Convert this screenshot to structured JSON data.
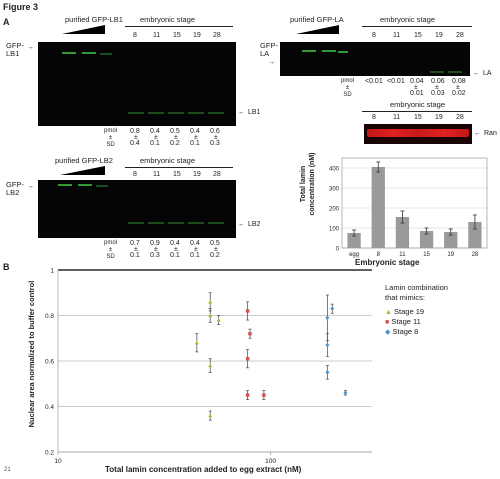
{
  "figure_title": "Figure 3",
  "panel_a": {
    "label": "A",
    "lb1": {
      "side_label": "GFP-\nLB1",
      "purified_label": "purified GFP-LB1",
      "stage_header": "embryonic stage",
      "stages": [
        "8",
        "11",
        "15",
        "19",
        "28"
      ],
      "band_label": "LB1",
      "pmol_label": "pmol\n±\nSD",
      "pmol_values": [
        "0.8",
        "0.4",
        "0.5",
        "0.4",
        "0.6"
      ],
      "sd_values": [
        "0.4",
        "0.1",
        "0.2",
        "0.1",
        "0.3"
      ]
    },
    "lb2": {
      "side_label": "GFP-\nLB2",
      "purified_label": "purified GFP-LB2",
      "stage_header": "embryonic stage",
      "stages": [
        "8",
        "11",
        "15",
        "19",
        "28"
      ],
      "band_label": "LB2",
      "pmol_label": "pmol\n±\nSD",
      "pmol_values": [
        "0.7",
        "0.9",
        "0.4",
        "0.4",
        "0.5"
      ],
      "sd_values": [
        "0.1",
        "0.3",
        "0.1",
        "0.1",
        "0.2"
      ]
    },
    "la": {
      "side_label": "GFP-\nLA",
      "purified_label": "purified GFP-LA",
      "stage_header": "embryonic stage",
      "stages": [
        "8",
        "11",
        "15",
        "19",
        "28"
      ],
      "band_label": "LA",
      "pmol_label": "pmol\n±\nSD",
      "pmol_values": [
        "<0.01",
        "<0.01",
        "0.04",
        "0.06",
        "0.08"
      ],
      "sd_values": [
        "",
        "",
        "0.01",
        "0.03",
        "0.02"
      ]
    },
    "ran": {
      "stage_header": "embryonic stage",
      "stages": [
        "8",
        "11",
        "15",
        "19",
        "28"
      ],
      "band_label": "Ran"
    },
    "bar_chart": {
      "ylabel": "Total lamin\nconcentration (nM)",
      "xlabel": "Embryonic stage",
      "yticks": [
        "0",
        "100",
        "200",
        "300",
        "400"
      ]
    }
  },
  "panel_b": {
    "label": "B",
    "ylabel": "Nuclear area normalized to buffer control",
    "xlabel": "Total lamin concentration added to egg extract (nM)",
    "yticks": [
      "0.2",
      "0.4",
      "0.6",
      "0.8",
      "1"
    ],
    "xticks": [
      "10",
      "100"
    ],
    "legend_title": "Lamin combination\nthat mimics:",
    "legend": [
      {
        "name": "Stage 19",
        "color": "#a8b830",
        "symbol": "triangle"
      },
      {
        "name": "Stage 11",
        "color": "#d05050",
        "symbol": "square"
      },
      {
        "name": "Stage 8",
        "color": "#4a90d0",
        "symbol": "diamond"
      }
    ]
  },
  "page_number": "21",
  "chart_data": [
    {
      "type": "bar",
      "categories": [
        "egg",
        "8",
        "11",
        "15",
        "19",
        "28"
      ],
      "values": [
        75,
        405,
        155,
        85,
        80,
        130
      ],
      "errors": [
        15,
        25,
        30,
        15,
        15,
        35
      ],
      "xlabel": "Embryonic stage",
      "ylabel": "Total lamin concentration (nM)",
      "ylim": [
        0,
        450
      ],
      "grid": true,
      "color": "#9a9a9a"
    },
    {
      "type": "scatter",
      "xscale": "log",
      "xlim": [
        10,
        300
      ],
      "ylim": [
        0.2,
        1.0
      ],
      "xlabel": "Total lamin concentration added to egg extract (nM)",
      "ylabel": "Nuclear area normalized to buffer control",
      "legend_position": "right",
      "series": [
        {
          "name": "Stage 19",
          "color": "#a8b830",
          "points": [
            {
              "x": 45,
              "y": 0.68,
              "err": 0.04
            },
            {
              "x": 52,
              "y": 0.86,
              "err": 0.04
            },
            {
              "x": 52,
              "y": 0.8,
              "err": 0.03
            },
            {
              "x": 52,
              "y": 0.58,
              "err": 0.03
            },
            {
              "x": 52,
              "y": 0.36,
              "err": 0.02
            },
            {
              "x": 57,
              "y": 0.78,
              "err": 0.02
            }
          ]
        },
        {
          "name": "Stage 11",
          "color": "#d05050",
          "points": [
            {
              "x": 78,
              "y": 0.82,
              "err": 0.04
            },
            {
              "x": 80,
              "y": 0.72,
              "err": 0.02
            },
            {
              "x": 78,
              "y": 0.61,
              "err": 0.04
            },
            {
              "x": 78,
              "y": 0.45,
              "err": 0.02
            },
            {
              "x": 93,
              "y": 0.45,
              "err": 0.02
            }
          ]
        },
        {
          "name": "Stage 8",
          "color": "#4a90d0",
          "points": [
            {
              "x": 185,
              "y": 0.79,
              "err": 0.1
            },
            {
              "x": 185,
              "y": 0.67,
              "err": 0.05
            },
            {
              "x": 185,
              "y": 0.55,
              "err": 0.03
            },
            {
              "x": 195,
              "y": 0.83,
              "err": 0.02
            },
            {
              "x": 225,
              "y": 0.46,
              "err": 0.01
            }
          ]
        }
      ]
    }
  ]
}
